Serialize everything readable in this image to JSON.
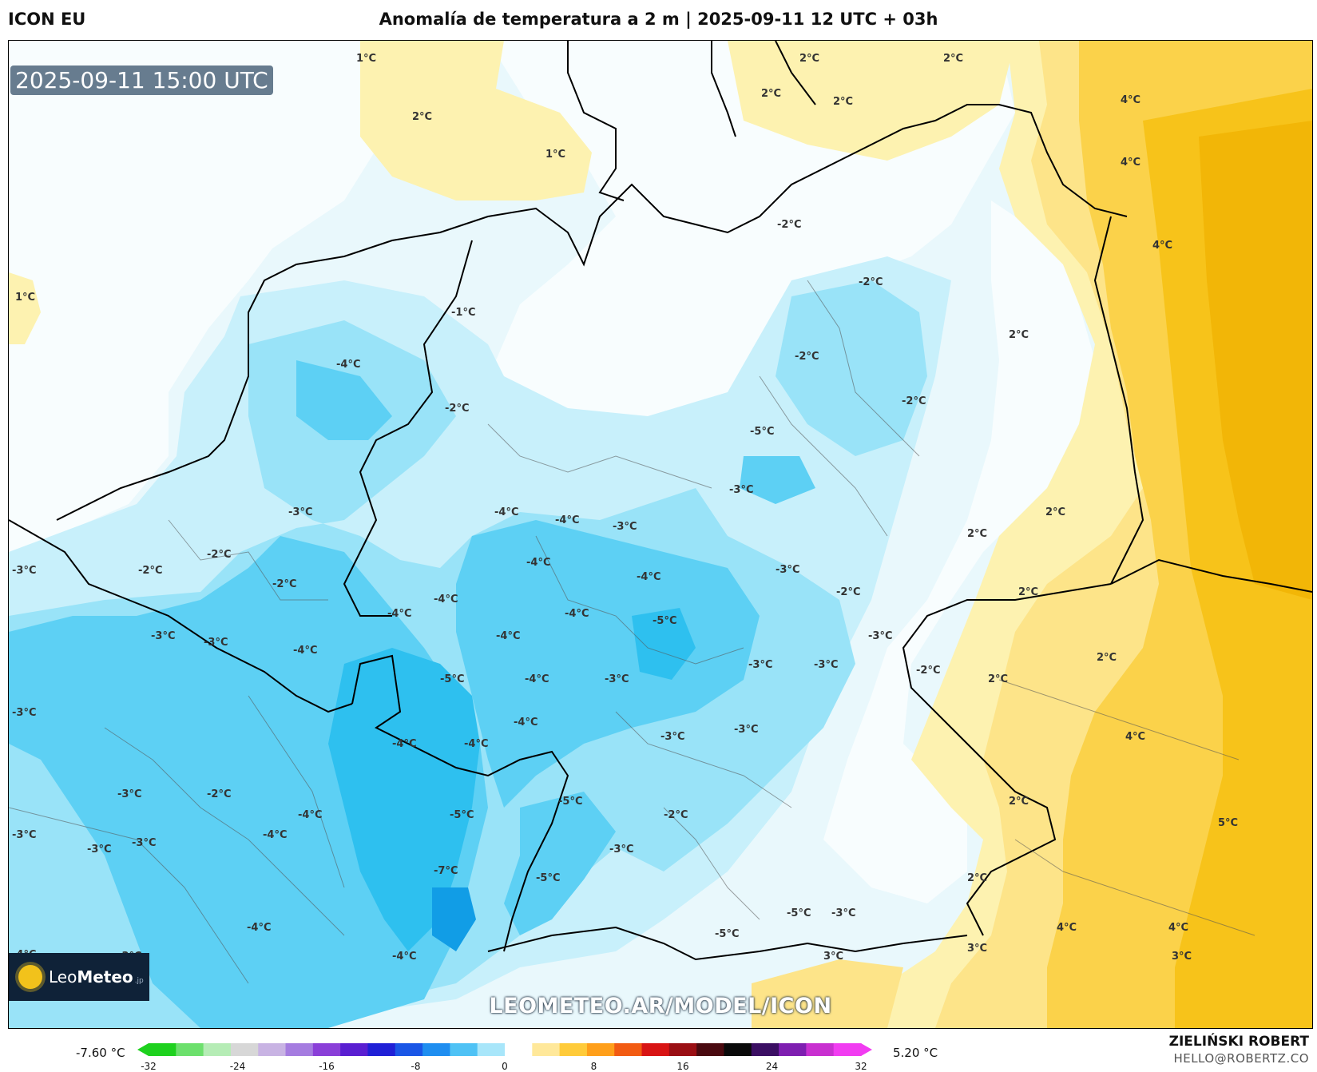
{
  "header": {
    "model": "ICON EU",
    "title": "Anomalía de temperatura a 2 m | 2025-09-11 12 UTC + 03h"
  },
  "map": {
    "timestamp": "2025-09-11 15:00 UTC",
    "watermark": "LEOMETEO.AR/MODEL/ICON",
    "logo": {
      "prefix": "Leo",
      "bold": "Meteo",
      "suffix": ".jp"
    },
    "contour_labels": {
      "1": "1°C",
      "2": "2°C",
      "3": "3°C",
      "4": "4°C",
      "5": "5°C",
      "-1": "-1°C",
      "-2": "-2°C",
      "-3": "-3°C",
      "-4": "-4°C",
      "-5": "-5°C",
      "-7": "-7°C"
    },
    "colors": {
      "warm_1": "#fdf2b0",
      "warm_2": "#fde489",
      "warm_3": "#fbd24a",
      "warm_4": "#f7c31a",
      "warm_5": "#f2b607",
      "cool_1": "#c8f0fb",
      "cool_2": "#99e3f8",
      "cool_3": "#5dd0f4",
      "cool_4": "#2ec0ef",
      "cool_5": "#119de6",
      "neutral": "#e9f8fc",
      "coast": "#000000",
      "border": "#555555"
    }
  },
  "colorbar": {
    "min_label": "-7.60 °C",
    "max_label": "5.20 °C",
    "ticks": [
      "-32",
      "-24",
      "-16",
      "-8",
      "0",
      "8",
      "16",
      "24",
      "32"
    ],
    "colors": [
      "#1ed11e",
      "#6ce06c",
      "#b5ecb5",
      "#d7d7d7",
      "#c8b3e3",
      "#a57ce0",
      "#8a3fd8",
      "#5a1fd1",
      "#2020d6",
      "#1a56e6",
      "#1f8ef0",
      "#4fc2f5",
      "#a8e6fa",
      "#ffffff",
      "#ffe89a",
      "#ffcb3a",
      "#ff9f1a",
      "#f25b12",
      "#d81414",
      "#9a0f14",
      "#4a0a10",
      "#0a0a0a",
      "#3b0f63",
      "#7e1fb0",
      "#c830d0",
      "#f13cf1"
    ]
  },
  "credits": {
    "author": "ZIELIŃSKI ROBERT",
    "email": "HELLO@ROBERTZ.CO"
  }
}
